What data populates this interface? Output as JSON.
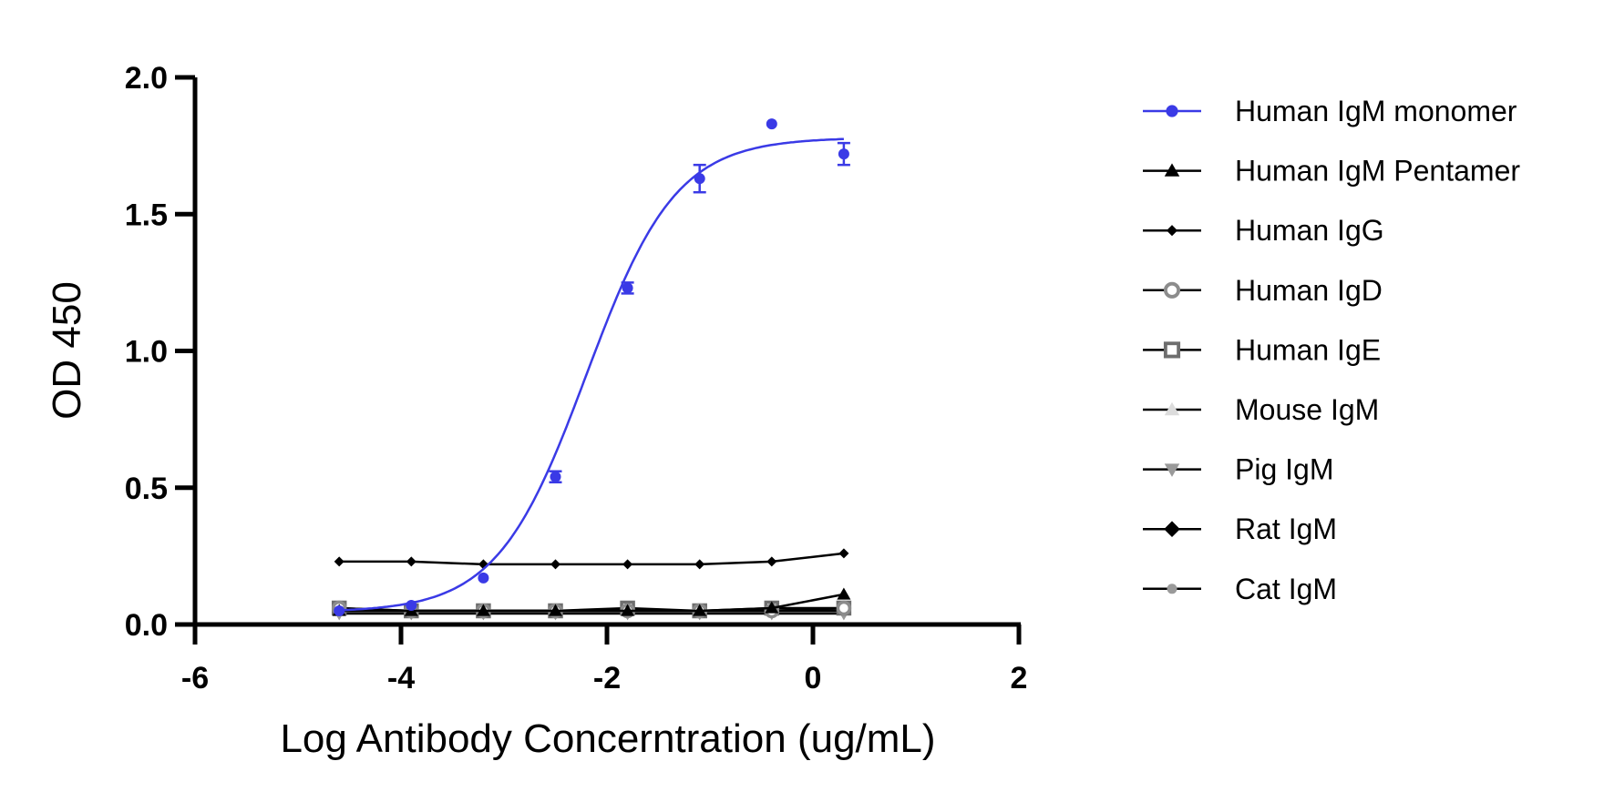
{
  "chart_data": {
    "type": "scatter",
    "title": "",
    "xlabel": "Log Antibody Concerntration (ug/mL)",
    "ylabel": "OD 450",
    "xlim": [
      -6,
      2
    ],
    "ylim": [
      0,
      2.0
    ],
    "xticks": [
      "-6",
      "-4",
      "-2",
      "0",
      "2"
    ],
    "yticks": [
      "0.0",
      "0.5",
      "1.0",
      "1.5",
      "2.0"
    ],
    "x": [
      -4.6,
      -3.9,
      -3.2,
      -2.5,
      -1.8,
      -1.1,
      -0.4,
      0.3
    ],
    "legend_position": "right",
    "series": [
      {
        "name": "Human IgM monomer",
        "marker": "circle",
        "color": "#3a3ae6",
        "values": [
          0.05,
          0.07,
          0.17,
          0.54,
          1.23,
          1.63,
          1.83,
          1.72
        ],
        "errors": [
          0,
          0,
          0,
          0.02,
          0.02,
          0.05,
          0,
          0.04
        ],
        "fit": {
          "bottom": 0.045,
          "top": 1.78,
          "logec50": -2.2,
          "hill": 1.0
        }
      },
      {
        "name": "Human IgM Pentamer",
        "marker": "triangle",
        "color": "#000000",
        "values": [
          0.05,
          0.05,
          0.05,
          0.05,
          0.05,
          0.05,
          0.06,
          0.11
        ]
      },
      {
        "name": "Human IgG",
        "marker": "diamond-small",
        "color": "#000000",
        "values": [
          0.23,
          0.23,
          0.22,
          0.22,
          0.22,
          0.22,
          0.23,
          0.26
        ]
      },
      {
        "name": "Human IgD",
        "marker": "circle-open",
        "color": "#8c8c8c",
        "values": [
          0.06,
          0.05,
          0.05,
          0.05,
          0.05,
          0.05,
          0.05,
          0.06
        ]
      },
      {
        "name": "Human IgE",
        "marker": "square-open",
        "color": "#6e6e6e",
        "values": [
          0.06,
          0.05,
          0.05,
          0.05,
          0.06,
          0.05,
          0.06,
          0.06
        ]
      },
      {
        "name": "Mouse IgM",
        "marker": "triangle",
        "color": "#dcdcdc",
        "values": [
          0.05,
          0.05,
          0.05,
          0.05,
          0.05,
          0.05,
          0.05,
          0.06
        ]
      },
      {
        "name": "Pig IgM",
        "marker": "triangle-down",
        "color": "#9a9a9a",
        "values": [
          0.04,
          0.04,
          0.04,
          0.04,
          0.04,
          0.04,
          0.04,
          0.04
        ]
      },
      {
        "name": "Rat IgM",
        "marker": "diamond",
        "color": "#000000",
        "values": [
          0.05,
          0.05,
          0.05,
          0.05,
          0.05,
          0.05,
          0.05,
          0.05
        ]
      },
      {
        "name": "Cat IgM",
        "marker": "circle-small",
        "color": "#9a9a9a",
        "values": [
          0.05,
          0.05,
          0.05,
          0.05,
          0.05,
          0.05,
          0.05,
          0.05
        ]
      }
    ]
  }
}
